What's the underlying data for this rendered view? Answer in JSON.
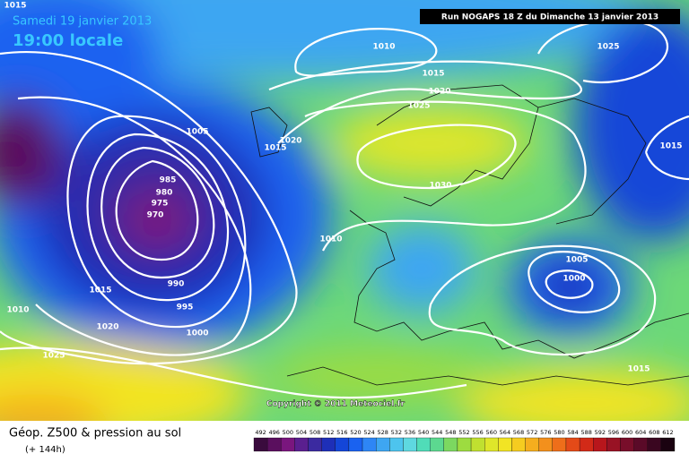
{
  "header": {
    "date": "Samedi 19 janvier 2013",
    "time": "19:00 locale",
    "run": "Run NOGAPS 18 Z du Dimanche 13 janvier 2013"
  },
  "copyright": "Copyright © 2011 Meteociel.fr",
  "footer": {
    "title": "Géop. Z500 & pression au sol",
    "subtitle": "(+ 144h)"
  },
  "isobar_labels": [
    "1015",
    "1010",
    "1025",
    "1015",
    "1020",
    "1025",
    "1005",
    "1020",
    "1015",
    "1015",
    "1030",
    "985",
    "980",
    "975",
    "970",
    "1010",
    "1005",
    "1000",
    "990",
    "1015",
    "995",
    "1010",
    "1020",
    "1000",
    "1025",
    "1015"
  ],
  "colorbar": {
    "levels": [
      492,
      496,
      500,
      504,
      508,
      512,
      516,
      520,
      524,
      528,
      532,
      536,
      540,
      544,
      548,
      552,
      556,
      560,
      564,
      568,
      572,
      576,
      580,
      584,
      588,
      592,
      596,
      600,
      604,
      608,
      612
    ],
    "colors": [
      "#3a0b3d",
      "#5a0f5e",
      "#7a167e",
      "#5a1f8f",
      "#3b2aa0",
      "#1e2fb8",
      "#1446d8",
      "#1a62f0",
      "#2e86f5",
      "#3ea6f2",
      "#4dc4ee",
      "#5ed8e0",
      "#50dcb8",
      "#5cd890",
      "#7cd860",
      "#9ddc40",
      "#c0e030",
      "#dfe62a",
      "#f2e424",
      "#f5cc20",
      "#f5ae1e",
      "#f3901c",
      "#ee6e1a",
      "#e44a18",
      "#d22a18",
      "#b8161c",
      "#981224",
      "#780e2a",
      "#5a0a28",
      "#3a0620",
      "#1a0210"
    ]
  }
}
